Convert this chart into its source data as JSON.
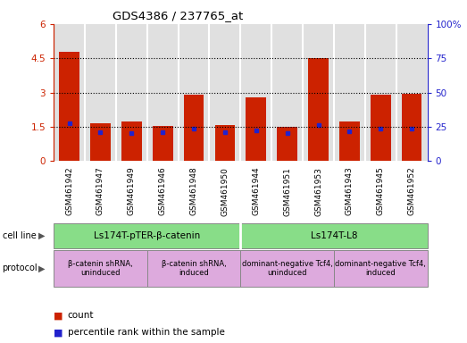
{
  "title": "GDS4386 / 237765_at",
  "samples": [
    "GSM461942",
    "GSM461947",
    "GSM461949",
    "GSM461946",
    "GSM461948",
    "GSM461950",
    "GSM461944",
    "GSM461951",
    "GSM461953",
    "GSM461943",
    "GSM461945",
    "GSM461952"
  ],
  "counts": [
    4.8,
    1.65,
    1.75,
    1.55,
    2.9,
    1.6,
    2.8,
    1.5,
    4.5,
    1.75,
    2.9,
    2.95
  ],
  "percentile_values": [
    1.65,
    1.28,
    1.22,
    1.25,
    1.42,
    1.28,
    1.35,
    1.22,
    1.58,
    1.32,
    1.42,
    1.42
  ],
  "bar_color": "#cc2200",
  "dot_color": "#2222cc",
  "cell_line_groups": [
    {
      "label": "Ls174T-pTER-β-catenin",
      "start": 0,
      "end": 6,
      "color": "#88dd88"
    },
    {
      "label": "Ls174T-L8",
      "start": 6,
      "end": 12,
      "color": "#88dd88"
    }
  ],
  "protocol_groups": [
    {
      "label": "β-catenin shRNA,\nuninduced",
      "start": 0,
      "end": 3,
      "color": "#ddaadd"
    },
    {
      "label": "β-catenin shRNA,\ninduced",
      "start": 3,
      "end": 6,
      "color": "#ddaadd"
    },
    {
      "label": "dominant-negative Tcf4,\nuninduced",
      "start": 6,
      "end": 9,
      "color": "#ddaadd"
    },
    {
      "label": "dominant-negative Tcf4,\ninduced",
      "start": 9,
      "end": 12,
      "color": "#ddaadd"
    }
  ],
  "ylim_left": [
    0,
    6
  ],
  "ylim_right": [
    0,
    100
  ],
  "yticks_left": [
    0,
    1.5,
    3,
    4.5,
    6
  ],
  "ytick_labels_left": [
    "0",
    "1.5",
    "3",
    "4.5",
    "6"
  ],
  "yticks_right": [
    0,
    25,
    50,
    75,
    100
  ],
  "ytick_labels_right": [
    "0",
    "25",
    "50",
    "75",
    "100%"
  ],
  "left_axis_color": "#cc2200",
  "right_axis_color": "#2222cc",
  "bar_width": 0.65,
  "legend_count_label": "count",
  "legend_pct_label": "percentile rank within the sample",
  "cell_line_label": "cell line",
  "protocol_label": "protocol",
  "gap_color": "#ffffff",
  "bg_color": "#e0e0e0"
}
